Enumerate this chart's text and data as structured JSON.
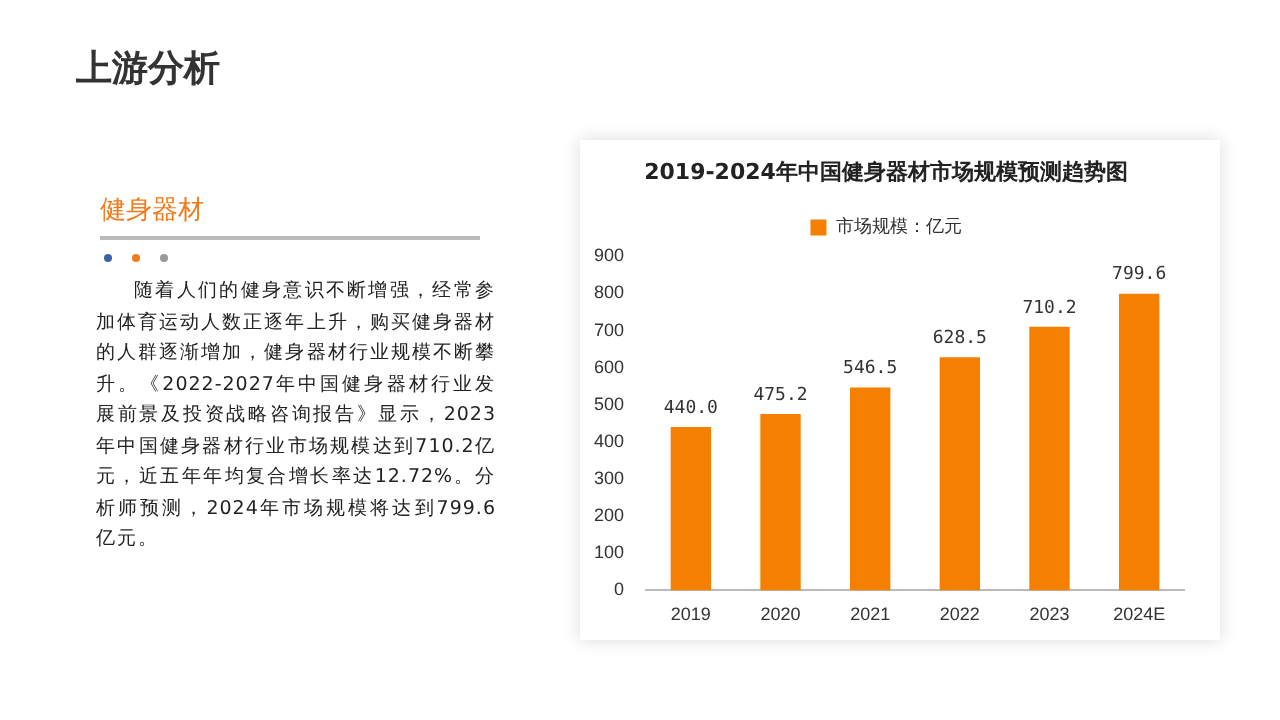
{
  "chart_data": {
    "type": "bar",
    "title": "2019-2024年中国健身器材市场规模预测趋势图",
    "categories": [
      "2019",
      "2020",
      "2021",
      "2022",
      "2023",
      "2024E"
    ],
    "series": [
      {
        "name": "市场规模：亿元",
        "color": "#f57f00",
        "values": [
          440.0,
          475.2,
          546.5,
          628.5,
          710.2,
          799.6
        ],
        "value_labels": [
          "440.0",
          "475.2",
          "546.5",
          "628.5",
          "710.2",
          "799.6"
        ]
      }
    ],
    "ylim": [
      0,
      900
    ],
    "yticks": [
      0,
      100,
      200,
      300,
      400,
      500,
      600,
      700,
      800,
      900
    ],
    "grid": false,
    "legend": "top",
    "annotations": [
      "上游分析",
      "健身器材",
      "随着人们的健身意识不断增强，经常参加体育运动人数正逐年上升，购买健身器材的人群逐渐增加，健身器材行业规模不断攀升。《2022-2027年中国健身器材行业发展前景及投资战略咨询报告》显示，2023年中国健身器材行业市场规模达到710.2亿元，近五年年均复合增长率达12.72%。分析师预测，2024年市场规模将达到799.6亿元。"
    ]
  }
}
